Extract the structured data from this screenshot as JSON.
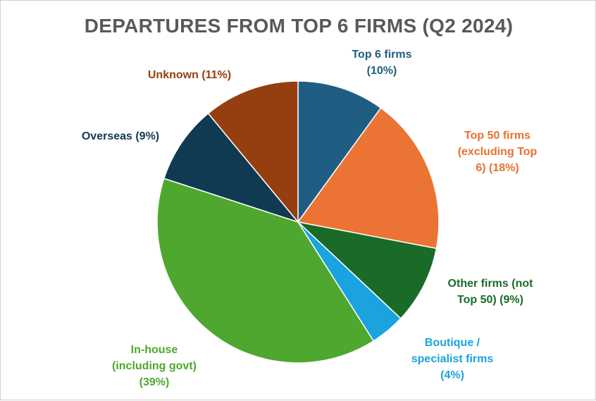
{
  "chart_data": {
    "type": "pie",
    "title": "DEPARTURES FROM TOP 6 FIRMS (Q2 2024)",
    "slices": [
      {
        "label_lines": [
          "Top 6 firms",
          "(10%)"
        ],
        "value": 10,
        "color": "#1f5e82"
      },
      {
        "label_lines": [
          "Top 50 firms",
          "(excluding Top",
          "6) (18%)"
        ],
        "value": 18,
        "color": "#eb7333"
      },
      {
        "label_lines": [
          "Other firms (not",
          "Top 50) (9%)"
        ],
        "value": 9,
        "color": "#1b6b28"
      },
      {
        "label_lines": [
          "Boutique /",
          "specialist firms",
          "(4%)"
        ],
        "value": 4,
        "color": "#1aa3de"
      },
      {
        "label_lines": [
          "In-house",
          "(including govt)",
          "(39%)"
        ],
        "value": 39,
        "color": "#4ea72e"
      },
      {
        "label_lines": [
          "Overseas (9%)"
        ],
        "value": 9,
        "color": "#103a52"
      },
      {
        "label_lines": [
          "Unknown (11%)"
        ],
        "value": 11,
        "color": "#953f10"
      }
    ],
    "label_colors": [
      "#1f5e82",
      "#e9712f",
      "#1b6b28",
      "#1aa3de",
      "#4ea72e",
      "#103a52",
      "#953f10"
    ],
    "legend": "none"
  }
}
